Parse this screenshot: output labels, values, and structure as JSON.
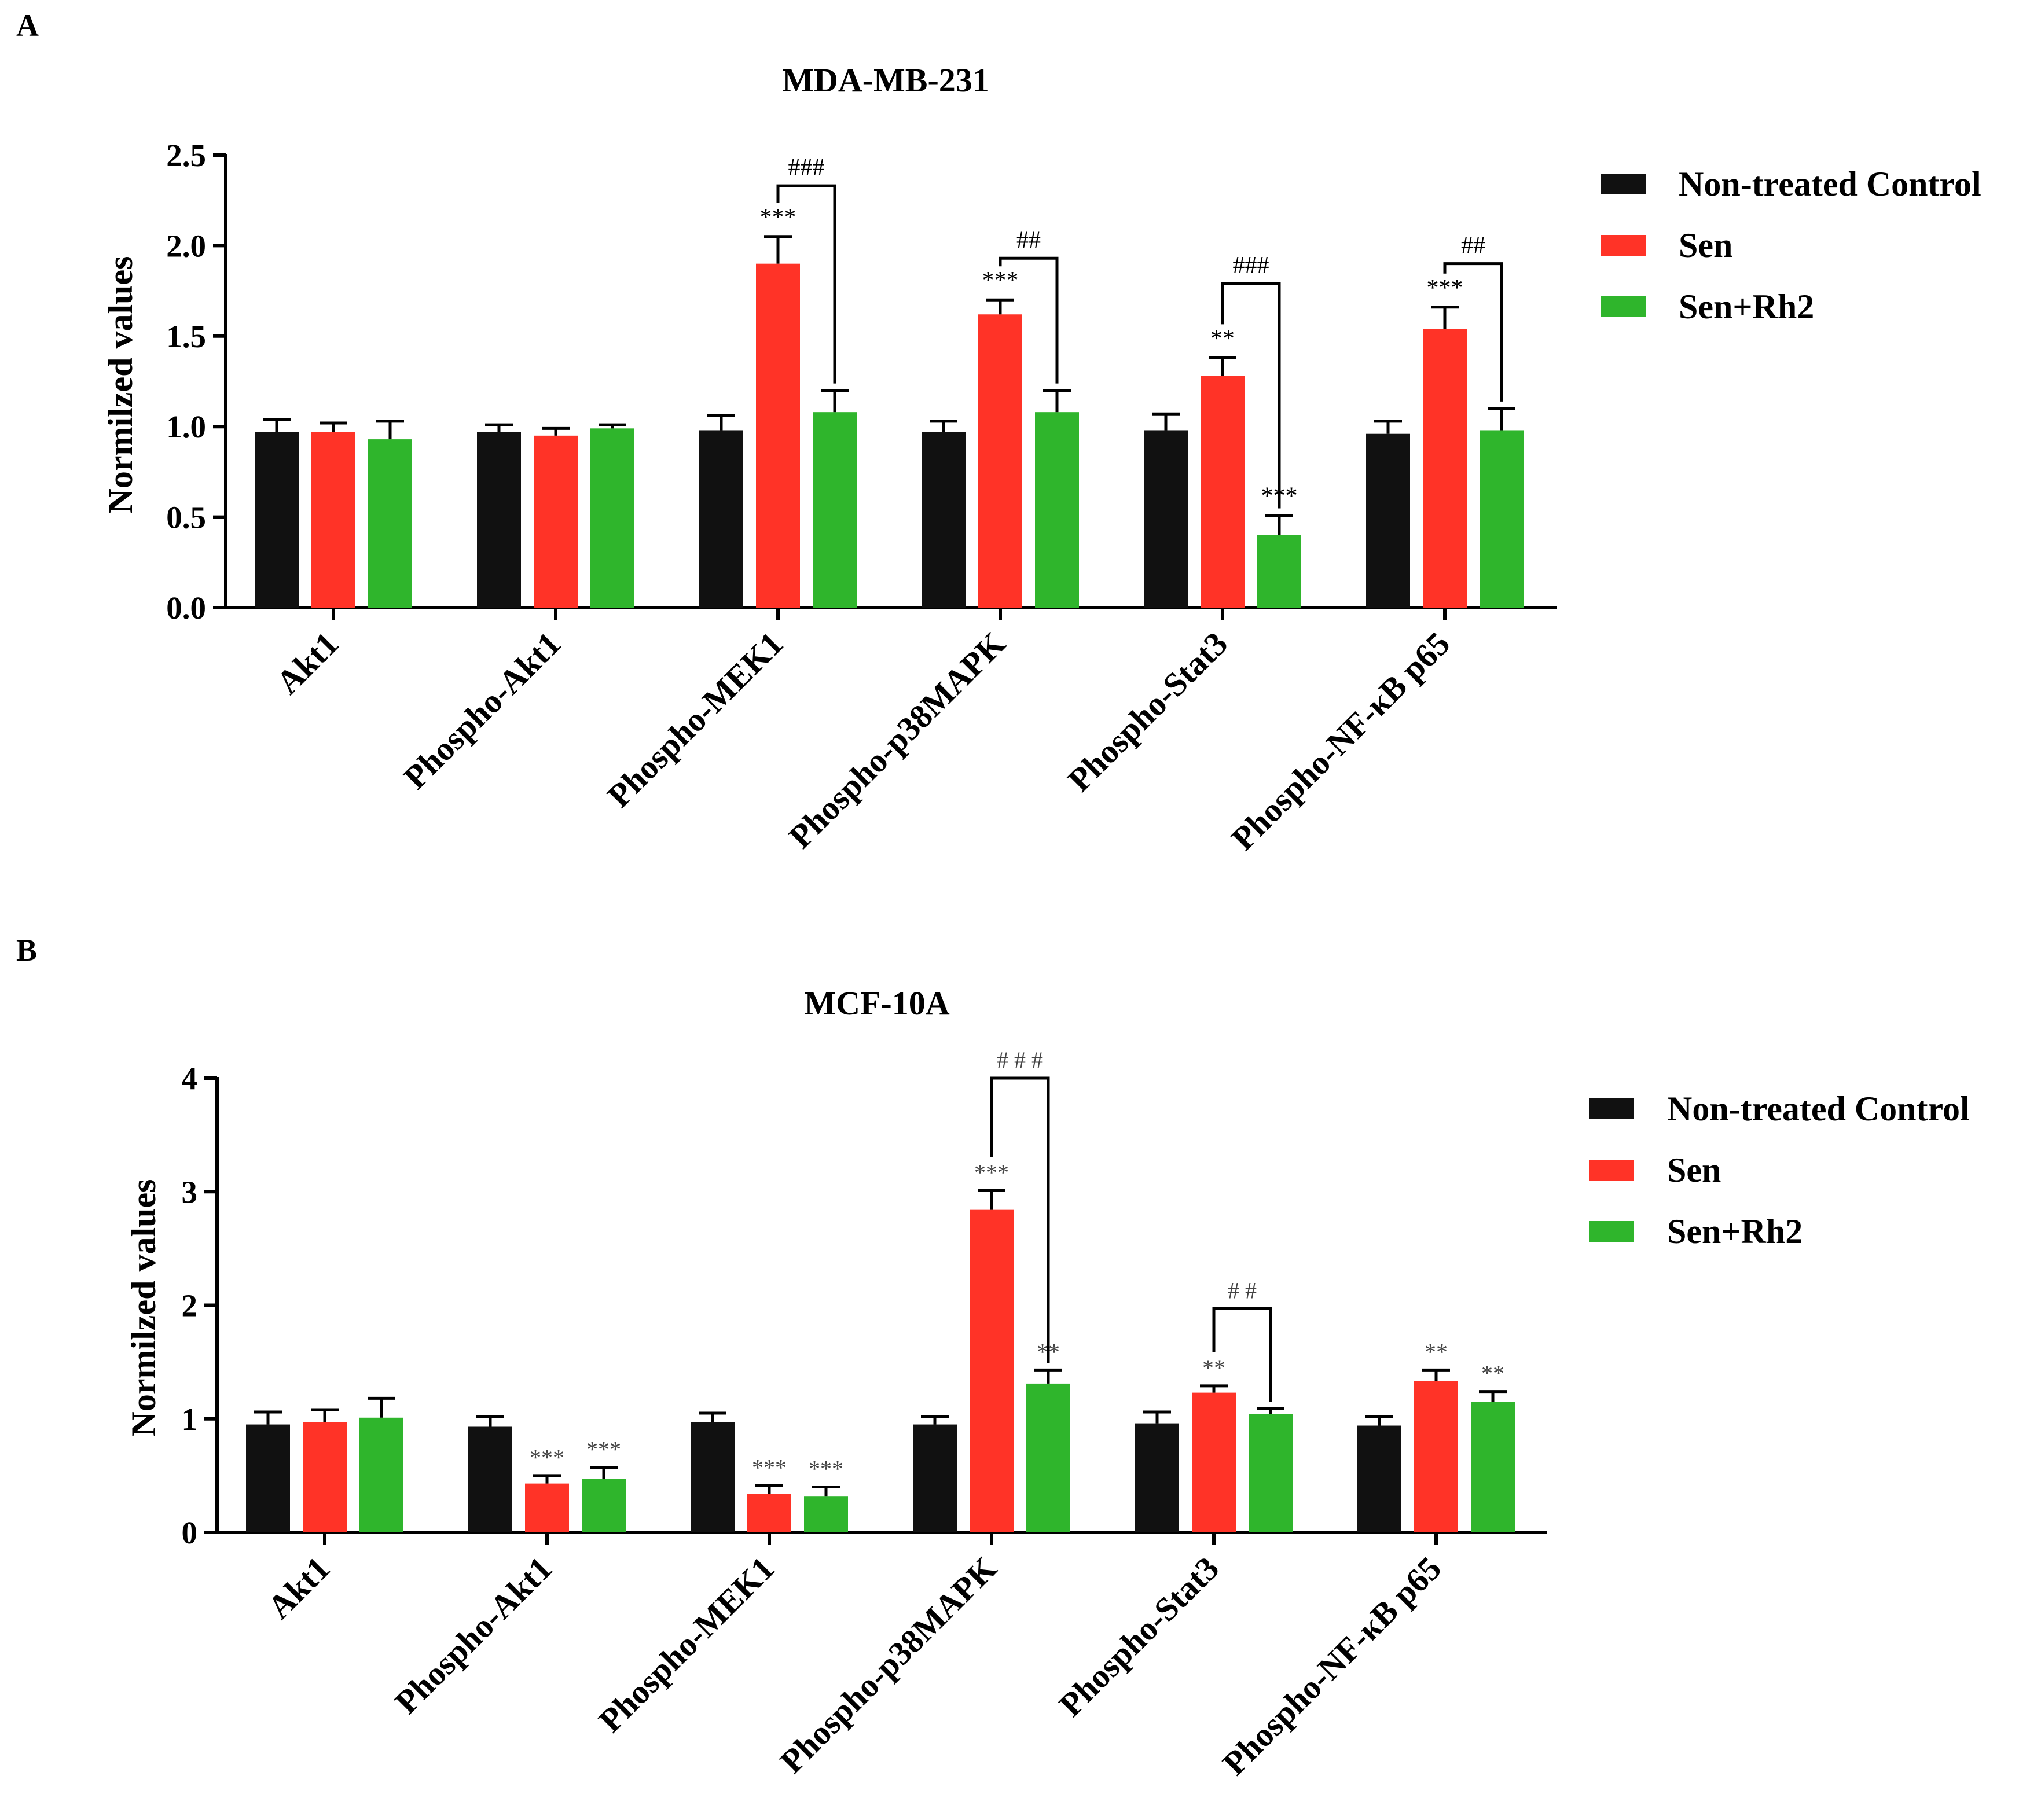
{
  "colors": {
    "control": "#111111",
    "sen": "#ff3327",
    "sen_rh2": "#2fb52c"
  },
  "chart_data": [
    {
      "panel": "A",
      "type": "bar",
      "title": "MDA-MB-231",
      "ylabel": "Normilzed values",
      "xlabel": "",
      "ylim": [
        0,
        2.5
      ],
      "yticks": [
        "0.0",
        "0.5",
        "1.0",
        "1.5",
        "2.0",
        "2.5"
      ],
      "ytick_values": [
        0,
        0.5,
        1.0,
        1.5,
        2.0,
        2.5
      ],
      "categories": [
        "Akt1",
        "Phospho-Akt1",
        "Phospho-MEK1",
        "Phospho-p38MAPK",
        "Phospho-Stat3",
        "Phospho-NF-κB p65"
      ],
      "legend": [
        "Non-treated Control",
        "Sen",
        "Sen+Rh2"
      ],
      "series": [
        {
          "name": "Non-treated Control",
          "values": [
            0.97,
            0.97,
            0.98,
            0.97,
            0.98,
            0.96
          ],
          "errors": [
            0.07,
            0.04,
            0.08,
            0.06,
            0.09,
            0.07
          ]
        },
        {
          "name": "Sen",
          "values": [
            0.97,
            0.95,
            1.9,
            1.62,
            1.28,
            1.54
          ],
          "errors": [
            0.05,
            0.04,
            0.15,
            0.08,
            0.1,
            0.12
          ]
        },
        {
          "name": "Sen+Rh2",
          "values": [
            0.93,
            0.99,
            1.08,
            1.08,
            0.4,
            0.98
          ],
          "errors": [
            0.1,
            0.02,
            0.12,
            0.12,
            0.11,
            0.12
          ]
        }
      ],
      "annotations": [
        {
          "category": 2,
          "series": 1,
          "text": "***"
        },
        {
          "category": 3,
          "series": 1,
          "text": "***"
        },
        {
          "category": 4,
          "series": 1,
          "text": "**"
        },
        {
          "category": 4,
          "series": 2,
          "text": "***"
        },
        {
          "category": 5,
          "series": 1,
          "text": "***"
        }
      ],
      "brackets": [
        {
          "category": 2,
          "text": "###",
          "level": 2.33
        },
        {
          "category": 3,
          "text": "##",
          "level": 1.93
        },
        {
          "category": 4,
          "text": "###",
          "level": 1.79
        },
        {
          "category": 5,
          "text": "##",
          "level": 1.9
        }
      ]
    },
    {
      "panel": "B",
      "type": "bar",
      "title": "MCF-10A",
      "ylabel": "Normilzed values",
      "xlabel": "",
      "ylim": [
        0,
        4
      ],
      "yticks": [
        "0",
        "1",
        "2",
        "3",
        "4"
      ],
      "ytick_values": [
        0,
        1,
        2,
        3,
        4
      ],
      "categories": [
        "Akt1",
        "Phospho-Akt1",
        "Phospho-MEK1",
        "Phospho-p38MAPK",
        "Phospho-Stat3",
        "Phospho-NF-κB p65"
      ],
      "legend": [
        "Non-treated Control",
        "Sen",
        "Sen+Rh2"
      ],
      "series": [
        {
          "name": "Non-treated Control",
          "values": [
            0.95,
            0.93,
            0.97,
            0.95,
            0.96,
            0.94
          ],
          "errors": [
            0.11,
            0.09,
            0.08,
            0.07,
            0.1,
            0.08
          ]
        },
        {
          "name": "Sen",
          "values": [
            0.97,
            0.43,
            0.34,
            2.84,
            1.23,
            1.33
          ],
          "errors": [
            0.11,
            0.07,
            0.07,
            0.17,
            0.06,
            0.1
          ]
        },
        {
          "name": "Sen+Rh2",
          "values": [
            1.01,
            0.47,
            0.32,
            1.31,
            1.04,
            1.15
          ],
          "errors": [
            0.17,
            0.1,
            0.08,
            0.12,
            0.05,
            0.09
          ]
        }
      ],
      "annotations": [
        {
          "category": 1,
          "series": 1,
          "text": "***"
        },
        {
          "category": 1,
          "series": 2,
          "text": "***"
        },
        {
          "category": 2,
          "series": 1,
          "text": "***"
        },
        {
          "category": 2,
          "series": 2,
          "text": "***"
        },
        {
          "category": 3,
          "series": 1,
          "text": "***"
        },
        {
          "category": 3,
          "series": 2,
          "text": "**"
        },
        {
          "category": 4,
          "series": 1,
          "text": "**"
        },
        {
          "category": 5,
          "series": 1,
          "text": "**"
        },
        {
          "category": 5,
          "series": 2,
          "text": "**"
        }
      ],
      "brackets": [
        {
          "category": 3,
          "text": "# # #",
          "level": 4.0
        },
        {
          "category": 4,
          "text": "# #",
          "level": 1.97
        }
      ]
    }
  ]
}
